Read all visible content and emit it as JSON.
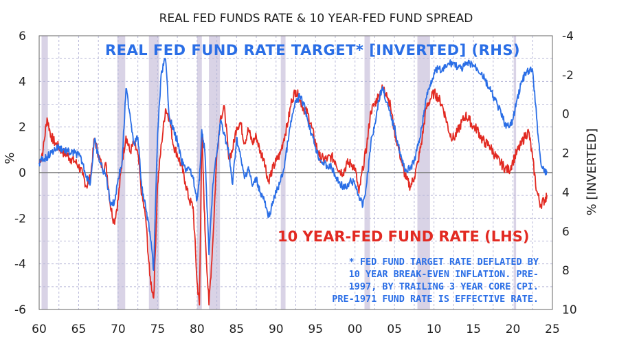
{
  "chart_data": {
    "type": "line",
    "title": "REAL FED FUNDS RATE & 10 YEAR-FED FUND SPREAD",
    "ylabel_left": "%",
    "ylabel_right": "% [INVERTED]",
    "left_axis": {
      "ylim": [
        -6,
        6
      ],
      "ticks": [
        "6",
        "4",
        "2",
        "0",
        "-2",
        "-4",
        "-6"
      ]
    },
    "right_axis": {
      "ylim": [
        -4,
        10
      ],
      "inverted": true,
      "ticks": [
        "-4",
        "-2",
        "0",
        "2",
        "4",
        "6",
        "8",
        "10"
      ]
    },
    "x_axis": {
      "xlim": [
        1960,
        2025
      ],
      "ticks": [
        "60",
        "65",
        "70",
        "75",
        "80",
        "85",
        "90",
        "95",
        "00",
        "05",
        "10",
        "15",
        "20",
        "25"
      ]
    },
    "grid": true,
    "recessions": [
      [
        1960.3,
        1961.1
      ],
      [
        1969.9,
        1970.9
      ],
      [
        1973.9,
        1975.2
      ],
      [
        1980.0,
        1980.6
      ],
      [
        1981.5,
        1982.9
      ],
      [
        1990.6,
        1991.2
      ],
      [
        2001.2,
        2001.9
      ],
      [
        2007.9,
        2009.5
      ],
      [
        2020.1,
        2020.4
      ]
    ],
    "series": [
      {
        "name": "10 YEAR-FED FUND RATE (LHS)",
        "color": "#e22a22",
        "axis": "left",
        "x": [
          1960.0,
          1960.5,
          1961.0,
          1961.5,
          1962.0,
          1962.5,
          1963.0,
          1963.5,
          1964.0,
          1964.5,
          1965.0,
          1965.5,
          1966.0,
          1966.5,
          1967.0,
          1967.5,
          1968.0,
          1968.5,
          1969.0,
          1969.5,
          1970.0,
          1970.5,
          1971.0,
          1971.5,
          1972.0,
          1972.5,
          1973.0,
          1973.5,
          1974.0,
          1974.5,
          1975.0,
          1975.5,
          1976.0,
          1976.5,
          1977.0,
          1977.5,
          1978.0,
          1978.5,
          1979.0,
          1979.5,
          1980.0,
          1980.3,
          1980.6,
          1981.0,
          1981.5,
          1982.0,
          1982.5,
          1983.0,
          1983.5,
          1984.0,
          1984.5,
          1985.0,
          1985.5,
          1986.0,
          1986.5,
          1987.0,
          1987.5,
          1988.0,
          1988.5,
          1989.0,
          1989.5,
          1990.0,
          1990.5,
          1991.0,
          1991.5,
          1992.0,
          1992.5,
          1993.0,
          1993.5,
          1994.0,
          1994.5,
          1995.0,
          1995.5,
          1996.0,
          1996.5,
          1997.0,
          1997.5,
          1998.0,
          1998.5,
          1999.0,
          1999.5,
          2000.0,
          2000.5,
          2001.0,
          2001.5,
          2002.0,
          2002.5,
          2003.0,
          2003.5,
          2004.0,
          2004.5,
          2005.0,
          2005.5,
          2006.0,
          2006.5,
          2007.0,
          2007.5,
          2008.0,
          2008.5,
          2009.0,
          2009.5,
          2010.0,
          2010.5,
          2011.0,
          2011.5,
          2012.0,
          2012.5,
          2013.0,
          2013.5,
          2014.0,
          2014.5,
          2015.0,
          2015.5,
          2016.0,
          2016.5,
          2017.0,
          2017.5,
          2018.0,
          2018.5,
          2019.0,
          2019.5,
          2020.0,
          2020.5,
          2021.0,
          2021.5,
          2022.0,
          2022.5,
          2023.0,
          2023.5,
          2024.0,
          2024.3
        ],
        "values": [
          0.4,
          1.0,
          2.4,
          1.6,
          1.3,
          1.1,
          0.9,
          0.8,
          0.6,
          0.5,
          0.3,
          -0.1,
          -0.6,
          -0.2,
          1.5,
          0.8,
          0.2,
          0.3,
          -1.4,
          -2.2,
          -1.2,
          0.5,
          1.6,
          0.9,
          1.3,
          0.8,
          -1.0,
          -2.0,
          -4.5,
          -5.5,
          -0.5,
          1.3,
          2.8,
          2.4,
          1.2,
          0.8,
          0.3,
          -0.4,
          -1.2,
          -1.5,
          -4.8,
          -5.8,
          1.8,
          -2.5,
          -5.8,
          -3.0,
          0.8,
          2.5,
          2.8,
          0.6,
          1.0,
          2.0,
          2.2,
          1.3,
          1.9,
          1.3,
          1.6,
          0.9,
          0.6,
          -0.4,
          0.1,
          0.5,
          0.8,
          1.5,
          2.2,
          3.2,
          3.6,
          3.2,
          2.8,
          2.6,
          2.0,
          1.3,
          0.7,
          0.6,
          0.6,
          0.7,
          0.5,
          0.1,
          0.0,
          0.4,
          0.4,
          0.2,
          -0.9,
          0.2,
          1.2,
          2.7,
          3.0,
          3.4,
          3.7,
          3.5,
          2.9,
          1.8,
          1.1,
          0.3,
          -0.3,
          -0.6,
          -0.2,
          0.5,
          1.5,
          2.8,
          3.2,
          3.5,
          3.3,
          3.0,
          2.4,
          1.7,
          1.5,
          1.8,
          2.2,
          2.5,
          2.3,
          2.0,
          1.9,
          1.5,
          1.3,
          1.2,
          0.9,
          0.6,
          0.4,
          0.2,
          0.1,
          0.5,
          0.9,
          1.2,
          1.6,
          1.8,
          0.6,
          -0.8,
          -1.4,
          -1.2,
          -1.0
        ]
      },
      {
        "name": "REAL FED FUND RATE TARGET* [INVERTED] (RHS)",
        "color": "#2a6ee6",
        "axis": "right",
        "x": [
          1960.0,
          1960.5,
          1961.0,
          1961.5,
          1962.0,
          1962.5,
          1963.0,
          1963.5,
          1964.0,
          1964.5,
          1965.0,
          1965.5,
          1966.0,
          1966.5,
          1967.0,
          1967.5,
          1968.0,
          1968.5,
          1969.0,
          1969.5,
          1970.0,
          1970.5,
          1971.0,
          1971.5,
          1972.0,
          1972.5,
          1973.0,
          1973.5,
          1974.0,
          1974.5,
          1975.0,
          1975.5,
          1976.0,
          1976.5,
          1977.0,
          1977.5,
          1978.0,
          1978.5,
          1979.0,
          1979.5,
          1980.0,
          1980.3,
          1980.6,
          1981.0,
          1981.5,
          1982.0,
          1982.5,
          1983.0,
          1983.5,
          1984.0,
          1984.5,
          1985.0,
          1985.5,
          1986.0,
          1986.5,
          1987.0,
          1987.5,
          1988.0,
          1988.5,
          1989.0,
          1989.5,
          1990.0,
          1990.5,
          1991.0,
          1991.5,
          1992.0,
          1992.5,
          1993.0,
          1993.5,
          1994.0,
          1994.5,
          1995.0,
          1995.5,
          1996.0,
          1996.5,
          1997.0,
          1997.5,
          1998.0,
          1998.5,
          1999.0,
          1999.5,
          2000.0,
          2000.5,
          2001.0,
          2001.5,
          2002.0,
          2002.5,
          2003.0,
          2003.5,
          2004.0,
          2004.5,
          2005.0,
          2005.5,
          2006.0,
          2006.5,
          2007.0,
          2007.5,
          2008.0,
          2008.5,
          2009.0,
          2009.5,
          2010.0,
          2010.5,
          2011.0,
          2011.5,
          2012.0,
          2012.5,
          2013.0,
          2013.5,
          2014.0,
          2014.5,
          2015.0,
          2015.5,
          2016.0,
          2016.5,
          2017.0,
          2017.5,
          2018.0,
          2018.5,
          2019.0,
          2019.5,
          2020.0,
          2020.5,
          2021.0,
          2021.5,
          2022.0,
          2022.5,
          2023.0,
          2023.5,
          2024.0,
          2024.3
        ],
        "values": [
          2.5,
          2.3,
          2.2,
          2.0,
          1.8,
          1.7,
          1.8,
          1.9,
          2.0,
          2.0,
          2.1,
          2.5,
          3.2,
          3.5,
          1.3,
          2.2,
          2.8,
          3.2,
          4.5,
          4.6,
          3.3,
          2.5,
          -1.3,
          0.0,
          1.5,
          1.2,
          3.8,
          4.8,
          6.0,
          8.0,
          1.0,
          -2.2,
          -2.8,
          0.2,
          0.8,
          1.4,
          2.4,
          2.8,
          2.8,
          3.3,
          4.4,
          3.4,
          0.8,
          2.0,
          7.2,
          3.6,
          2.0,
          0.3,
          1.1,
          2.0,
          3.6,
          1.2,
          2.2,
          3.3,
          2.7,
          3.7,
          3.3,
          4.0,
          4.4,
          5.3,
          4.7,
          4.0,
          3.5,
          2.8,
          1.4,
          0.2,
          -0.6,
          -0.9,
          -0.5,
          0.3,
          1.0,
          1.7,
          2.3,
          2.5,
          2.7,
          2.7,
          3.2,
          3.5,
          3.7,
          3.8,
          3.4,
          3.6,
          4.2,
          4.7,
          3.5,
          1.5,
          0.5,
          -0.7,
          -1.4,
          -0.6,
          0.1,
          0.7,
          1.6,
          2.5,
          2.9,
          2.8,
          2.4,
          1.6,
          0.6,
          -0.8,
          -1.5,
          -2.1,
          -2.3,
          -2.2,
          -2.4,
          -2.6,
          -2.6,
          -2.4,
          -2.3,
          -2.5,
          -2.6,
          -2.5,
          -2.3,
          -2.1,
          -1.7,
          -1.3,
          -0.9,
          -0.5,
          0.0,
          0.5,
          0.7,
          0.3,
          -0.7,
          -1.5,
          -2.0,
          -2.2,
          -2.2,
          0.2,
          2.4,
          3.0,
          3.0
        ]
      }
    ],
    "annotations": [
      "REAL FED FUND RATE TARGET* [INVERTED] (RHS)",
      "10 YEAR-FED FUND RATE (LHS)",
      "* FED FUND TARGET RATE DEFLATED BY",
      "10 YEAR BREAK-EVEN INFLATION.  PRE-",
      "1997, BY TRAILING 3 YEAR CORE CPI.",
      "PRE-1971 FUND RATE IS EFFECTIVE RATE."
    ]
  }
}
